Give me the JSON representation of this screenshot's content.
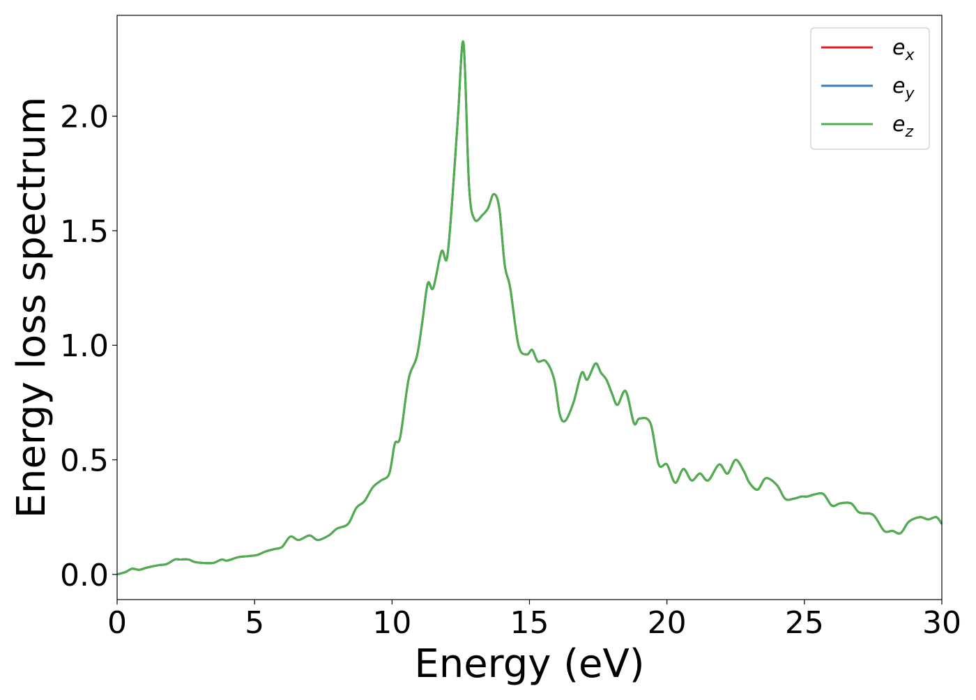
{
  "chart_data": {
    "type": "line",
    "xlabel": "Energy (eV)",
    "ylabel": "Energy loss spectrum",
    "xlim": [
      0,
      30
    ],
    "ylim": [
      -0.11,
      2.44
    ],
    "xticks": [
      0,
      5,
      10,
      15,
      20,
      25,
      30
    ],
    "xtick_labels": [
      "0",
      "5",
      "10",
      "15",
      "20",
      "25",
      "30"
    ],
    "yticks": [
      0.0,
      0.5,
      1.0,
      1.5,
      2.0
    ],
    "ytick_labels": [
      "0.0",
      "0.5",
      "1.0",
      "1.5",
      "2.0"
    ],
    "grid": false,
    "legend_position": "top-right",
    "series": [
      {
        "name": "e_x",
        "label_base": "e",
        "label_sub": "x",
        "color": "#e41a1c",
        "x": [
          0,
          0.3,
          0.55,
          0.8,
          1.1,
          1.5,
          1.8,
          2.1,
          2.3,
          2.6,
          2.8,
          3.1,
          3.5,
          3.8,
          4.0,
          4.4,
          4.8,
          5.1,
          5.4,
          5.7,
          6.0,
          6.3,
          6.6,
          7.0,
          7.3,
          7.7,
          8.0,
          8.4,
          8.7,
          9.0,
          9.3,
          9.6,
          9.9,
          10.1,
          10.3,
          10.6,
          10.9,
          11.1,
          11.3,
          11.5,
          11.8,
          12.0,
          12.2,
          12.4,
          12.6,
          12.8,
          13.0,
          13.3,
          13.5,
          13.7,
          13.9,
          14.1,
          14.3,
          14.6,
          14.9,
          15.1,
          15.3,
          15.6,
          15.9,
          16.1,
          16.3,
          16.6,
          16.9,
          17.1,
          17.4,
          17.6,
          17.8,
          18.0,
          18.2,
          18.5,
          18.8,
          19.0,
          19.4,
          19.7,
          20.0,
          20.3,
          20.6,
          20.9,
          21.2,
          21.5,
          21.9,
          22.2,
          22.5,
          22.8,
          23.0,
          23.3,
          23.6,
          24.0,
          24.3,
          24.6,
          24.9,
          25.1,
          25.4,
          25.7,
          26.0,
          26.3,
          26.7,
          27.0,
          27.5,
          27.9,
          28.2,
          28.5,
          28.8,
          29.2,
          29.5,
          29.8,
          30.0
        ],
        "y": [
          0.0,
          0.01,
          0.025,
          0.02,
          0.03,
          0.04,
          0.045,
          0.065,
          0.065,
          0.065,
          0.055,
          0.05,
          0.05,
          0.065,
          0.06,
          0.075,
          0.08,
          0.085,
          0.1,
          0.11,
          0.12,
          0.165,
          0.15,
          0.17,
          0.15,
          0.17,
          0.2,
          0.22,
          0.29,
          0.32,
          0.38,
          0.41,
          0.44,
          0.57,
          0.6,
          0.85,
          0.95,
          1.1,
          1.27,
          1.25,
          1.41,
          1.38,
          1.65,
          2.0,
          2.32,
          1.7,
          1.55,
          1.57,
          1.6,
          1.66,
          1.6,
          1.35,
          1.25,
          1.0,
          0.96,
          0.98,
          0.93,
          0.93,
          0.85,
          0.7,
          0.67,
          0.75,
          0.88,
          0.85,
          0.92,
          0.88,
          0.85,
          0.79,
          0.74,
          0.8,
          0.66,
          0.68,
          0.66,
          0.48,
          0.48,
          0.4,
          0.46,
          0.41,
          0.44,
          0.41,
          0.48,
          0.44,
          0.5,
          0.45,
          0.4,
          0.37,
          0.42,
          0.39,
          0.33,
          0.33,
          0.34,
          0.34,
          0.35,
          0.35,
          0.3,
          0.31,
          0.31,
          0.27,
          0.26,
          0.19,
          0.19,
          0.18,
          0.23,
          0.25,
          0.24,
          0.25,
          0.22
        ]
      },
      {
        "name": "e_y",
        "label_base": "e",
        "label_sub": "y",
        "color": "#377eb8",
        "x": [
          0,
          0.3,
          0.55,
          0.8,
          1.1,
          1.5,
          1.8,
          2.1,
          2.3,
          2.6,
          2.8,
          3.1,
          3.5,
          3.8,
          4.0,
          4.4,
          4.8,
          5.1,
          5.4,
          5.7,
          6.0,
          6.3,
          6.6,
          7.0,
          7.3,
          7.7,
          8.0,
          8.4,
          8.7,
          9.0,
          9.3,
          9.6,
          9.9,
          10.1,
          10.3,
          10.6,
          10.9,
          11.1,
          11.3,
          11.5,
          11.8,
          12.0,
          12.2,
          12.4,
          12.6,
          12.8,
          13.0,
          13.3,
          13.5,
          13.7,
          13.9,
          14.1,
          14.3,
          14.6,
          14.9,
          15.1,
          15.3,
          15.6,
          15.9,
          16.1,
          16.3,
          16.6,
          16.9,
          17.1,
          17.4,
          17.6,
          17.8,
          18.0,
          18.2,
          18.5,
          18.8,
          19.0,
          19.4,
          19.7,
          20.0,
          20.3,
          20.6,
          20.9,
          21.2,
          21.5,
          21.9,
          22.2,
          22.5,
          22.8,
          23.0,
          23.3,
          23.6,
          24.0,
          24.3,
          24.6,
          24.9,
          25.1,
          25.4,
          25.7,
          26.0,
          26.3,
          26.7,
          27.0,
          27.5,
          27.9,
          28.2,
          28.5,
          28.8,
          29.2,
          29.5,
          29.8,
          30.0
        ],
        "y": [
          0.0,
          0.01,
          0.025,
          0.02,
          0.03,
          0.04,
          0.045,
          0.065,
          0.065,
          0.065,
          0.055,
          0.05,
          0.05,
          0.065,
          0.06,
          0.075,
          0.08,
          0.085,
          0.1,
          0.11,
          0.12,
          0.165,
          0.15,
          0.17,
          0.15,
          0.17,
          0.2,
          0.22,
          0.29,
          0.32,
          0.38,
          0.41,
          0.44,
          0.57,
          0.6,
          0.85,
          0.95,
          1.1,
          1.27,
          1.25,
          1.41,
          1.38,
          1.65,
          2.0,
          2.32,
          1.7,
          1.55,
          1.57,
          1.6,
          1.66,
          1.6,
          1.35,
          1.25,
          1.0,
          0.96,
          0.98,
          0.93,
          0.93,
          0.85,
          0.7,
          0.67,
          0.75,
          0.88,
          0.85,
          0.92,
          0.88,
          0.85,
          0.79,
          0.74,
          0.8,
          0.66,
          0.68,
          0.66,
          0.48,
          0.48,
          0.4,
          0.46,
          0.41,
          0.44,
          0.41,
          0.48,
          0.44,
          0.5,
          0.45,
          0.4,
          0.37,
          0.42,
          0.39,
          0.33,
          0.33,
          0.34,
          0.34,
          0.35,
          0.35,
          0.3,
          0.31,
          0.31,
          0.27,
          0.26,
          0.19,
          0.19,
          0.18,
          0.23,
          0.25,
          0.24,
          0.25,
          0.22
        ]
      },
      {
        "name": "e_z",
        "label_base": "e",
        "label_sub": "z",
        "color": "#4daf4a",
        "x": [
          0,
          0.3,
          0.55,
          0.8,
          1.1,
          1.5,
          1.8,
          2.1,
          2.3,
          2.6,
          2.8,
          3.1,
          3.5,
          3.8,
          4.0,
          4.4,
          4.8,
          5.1,
          5.4,
          5.7,
          6.0,
          6.3,
          6.6,
          7.0,
          7.3,
          7.7,
          8.0,
          8.4,
          8.7,
          9.0,
          9.3,
          9.6,
          9.9,
          10.1,
          10.3,
          10.6,
          10.9,
          11.1,
          11.3,
          11.5,
          11.8,
          12.0,
          12.2,
          12.4,
          12.6,
          12.8,
          13.0,
          13.3,
          13.5,
          13.7,
          13.9,
          14.1,
          14.3,
          14.6,
          14.9,
          15.1,
          15.3,
          15.6,
          15.9,
          16.1,
          16.3,
          16.6,
          16.9,
          17.1,
          17.4,
          17.6,
          17.8,
          18.0,
          18.2,
          18.5,
          18.8,
          19.0,
          19.4,
          19.7,
          20.0,
          20.3,
          20.6,
          20.9,
          21.2,
          21.5,
          21.9,
          22.2,
          22.5,
          22.8,
          23.0,
          23.3,
          23.6,
          24.0,
          24.3,
          24.6,
          24.9,
          25.1,
          25.4,
          25.7,
          26.0,
          26.3,
          26.7,
          27.0,
          27.5,
          27.9,
          28.2,
          28.5,
          28.8,
          29.2,
          29.5,
          29.8,
          30.0
        ],
        "y": [
          0.0,
          0.01,
          0.025,
          0.02,
          0.03,
          0.04,
          0.045,
          0.065,
          0.065,
          0.065,
          0.055,
          0.05,
          0.05,
          0.065,
          0.06,
          0.075,
          0.08,
          0.085,
          0.1,
          0.11,
          0.12,
          0.165,
          0.15,
          0.17,
          0.15,
          0.17,
          0.2,
          0.22,
          0.29,
          0.32,
          0.38,
          0.41,
          0.44,
          0.57,
          0.6,
          0.85,
          0.95,
          1.1,
          1.27,
          1.25,
          1.41,
          1.38,
          1.65,
          2.0,
          2.32,
          1.7,
          1.55,
          1.57,
          1.6,
          1.66,
          1.6,
          1.35,
          1.25,
          1.0,
          0.96,
          0.98,
          0.93,
          0.93,
          0.85,
          0.7,
          0.67,
          0.75,
          0.88,
          0.85,
          0.92,
          0.88,
          0.85,
          0.79,
          0.74,
          0.8,
          0.66,
          0.68,
          0.66,
          0.48,
          0.48,
          0.4,
          0.46,
          0.41,
          0.44,
          0.41,
          0.48,
          0.44,
          0.5,
          0.45,
          0.4,
          0.37,
          0.42,
          0.39,
          0.33,
          0.33,
          0.34,
          0.34,
          0.35,
          0.35,
          0.3,
          0.31,
          0.31,
          0.27,
          0.26,
          0.19,
          0.19,
          0.18,
          0.23,
          0.25,
          0.24,
          0.25,
          0.22
        ]
      }
    ]
  }
}
